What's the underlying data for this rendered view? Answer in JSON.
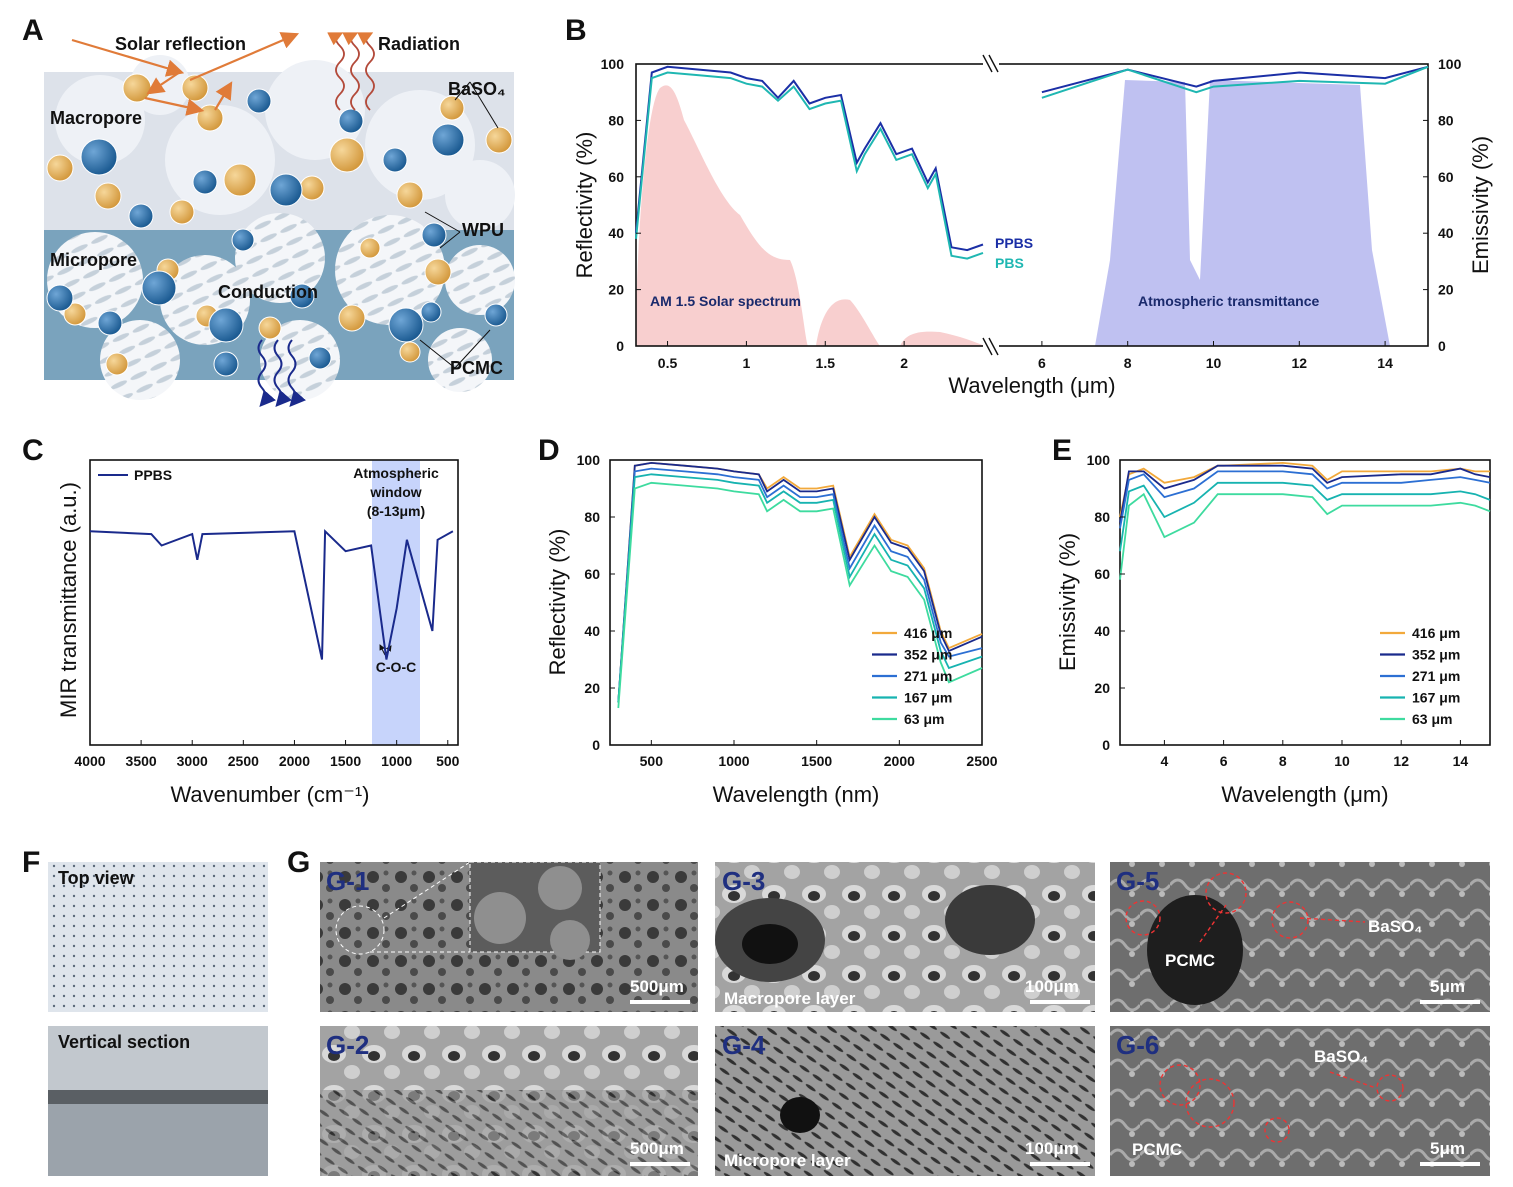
{
  "panels": {
    "a": "A",
    "b": "B",
    "c": "C",
    "d": "D",
    "e": "E",
    "f": "F",
    "g": "G"
  },
  "a": {
    "solar_reflection": "Solar reflection",
    "radiation": "Radiation",
    "macropore": "Macropore",
    "micropore": "Micropore",
    "conduction": "Conduction",
    "baso4": "BaSO₄",
    "wpu": "WPU",
    "pcmc": "PCMC"
  },
  "b": {
    "ylabel_left": "Reflectivity (%)",
    "ylabel_right": "Emissivity (%)",
    "xlabel": "Wavelength (μm)",
    "yticks": [
      "0",
      "20",
      "40",
      "60",
      "80",
      "100"
    ],
    "xticks_left": [
      "0.5",
      "1",
      "1.5",
      "2"
    ],
    "xticks_right": [
      "6",
      "8",
      "10",
      "12",
      "14"
    ],
    "legend": [
      "PPBS",
      "PBS"
    ],
    "solar": "AM 1.5 Solar spectrum",
    "atm": "Atmospheric transmittance"
  },
  "c": {
    "ylabel": "MIR transmittance (a.u.)",
    "xlabel": "Wavenumber (cm⁻¹)",
    "xticks": [
      "4000",
      "3500",
      "3000",
      "2500",
      "2000",
      "1500",
      "1000",
      "500"
    ],
    "legend": "PPBS",
    "window1": "Atmospheric",
    "window2": "window",
    "window3": "(8-13μm)",
    "coc": "C-O-C"
  },
  "d": {
    "ylabel": "Reflectivity (%)",
    "xlabel": "Wavelength (nm)",
    "yticks": [
      "0",
      "20",
      "40",
      "60",
      "80",
      "100"
    ],
    "xticks": [
      "500",
      "1000",
      "1500",
      "2000",
      "2500"
    ],
    "legend": [
      "416 μm",
      "352 μm",
      "271 μm",
      "167 μm",
      "63 μm"
    ]
  },
  "e": {
    "ylabel": "Emissivity (%)",
    "xlabel": "Wavelength (μm)",
    "yticks": [
      "0",
      "20",
      "40",
      "60",
      "80",
      "100"
    ],
    "xticks": [
      "4",
      "6",
      "8",
      "10",
      "12",
      "14"
    ],
    "legend": [
      "416 μm",
      "352 μm",
      "271 μm",
      "167 μm",
      "63 μm"
    ]
  },
  "f": {
    "top": "Top view",
    "vertical": "Vertical section"
  },
  "g": {
    "g1": "G-1",
    "g2": "G-2",
    "g3": "G-3",
    "g4": "G-4",
    "g5": "G-5",
    "g6": "G-6",
    "s500a": "500μm",
    "s500b": "500μm",
    "s100a": "100μm",
    "s100b": "100μm",
    "s5a": "5μm",
    "s5b": "5μm",
    "macro": "Macropore layer",
    "micro": "Micropore layer",
    "pcmc5": "PCMC",
    "baso5": "BaSO₄",
    "pcmc6": "PCMC",
    "baso6": "BaSO₄"
  },
  "chart_data": [
    {
      "type": "line",
      "panel": "B",
      "ylabel": "Reflectivity (%)",
      "y2label": "Emissivity (%)",
      "xlabel": "Wavelength (μm)",
      "ylim": [
        0,
        100
      ],
      "series": [
        {
          "name": "PPBS",
          "color": "#1b2fa6",
          "x": [
            0.3,
            0.4,
            0.5,
            0.7,
            0.9,
            1.0,
            1.1,
            1.2,
            1.3,
            1.4,
            1.5,
            1.6,
            1.7,
            1.75,
            1.85,
            1.95,
            2.05,
            2.15,
            2.2,
            2.3,
            2.4,
            2.5,
            6,
            8,
            9.6,
            10,
            12,
            14,
            15
          ],
          "values": [
            40,
            97,
            99,
            98,
            97,
            95,
            94,
            88,
            94,
            86,
            88,
            89,
            65,
            70,
            79,
            68,
            70,
            58,
            63,
            35,
            34,
            36,
            90,
            98,
            92,
            94,
            97,
            95,
            99
          ]
        },
        {
          "name": "PBS",
          "color": "#1fb7b2",
          "x": [
            0.3,
            0.4,
            0.5,
            0.7,
            0.9,
            1.0,
            1.1,
            1.2,
            1.3,
            1.4,
            1.5,
            1.6,
            1.7,
            1.75,
            1.85,
            1.95,
            2.05,
            2.15,
            2.2,
            2.3,
            2.4,
            2.5,
            6,
            8,
            9.6,
            10,
            12,
            14,
            15
          ],
          "values": [
            38,
            95,
            97,
            96,
            95,
            93,
            92,
            87,
            92,
            84,
            86,
            87,
            62,
            68,
            77,
            66,
            68,
            56,
            61,
            32,
            31,
            33,
            88,
            98,
            90,
            92,
            94,
            93,
            99
          ]
        }
      ]
    },
    {
      "type": "line",
      "panel": "C",
      "ylabel": "MIR transmittance (a.u.)",
      "xlabel": "Wavenumber (cm⁻¹)",
      "xlim": [
        4000,
        400
      ],
      "series": [
        {
          "name": "PPBS",
          "x": [
            4000,
            3400,
            3300,
            3000,
            2950,
            2900,
            2000,
            1730,
            1700,
            1500,
            1250,
            1100,
            1000,
            900,
            650,
            600,
            450
          ],
          "values": [
            75,
            74,
            70,
            74,
            65,
            74,
            75,
            30,
            75,
            68,
            70,
            30,
            48,
            72,
            40,
            72,
            75
          ]
        }
      ]
    },
    {
      "type": "line",
      "panel": "D",
      "ylabel": "Reflectivity (%)",
      "xlabel": "Wavelength (nm)",
      "ylim": [
        0,
        100
      ],
      "x": [
        300,
        400,
        500,
        700,
        900,
        1000,
        1150,
        1200,
        1300,
        1400,
        1500,
        1600,
        1700,
        1850,
        1950,
        2050,
        2150,
        2250,
        2300,
        2500
      ],
      "series": [
        {
          "name": "416 μm",
          "color": "#f2a93b",
          "values": [
            15,
            98,
            99,
            98,
            97,
            96,
            95,
            90,
            94,
            90,
            90,
            91,
            66,
            81,
            72,
            70,
            62,
            40,
            34,
            39
          ]
        },
        {
          "name": "352 μm",
          "color": "#1a2a8c",
          "values": [
            15,
            98,
            99,
            98,
            97,
            96,
            95,
            89,
            93,
            89,
            89,
            90,
            65,
            80,
            71,
            69,
            61,
            39,
            33,
            38
          ]
        },
        {
          "name": "271 μm",
          "color": "#2c6fd3",
          "values": [
            15,
            96,
            97,
            96,
            95,
            94,
            93,
            87,
            91,
            87,
            87,
            88,
            62,
            77,
            68,
            66,
            58,
            36,
            31,
            34
          ]
        },
        {
          "name": "167 μm",
          "color": "#17b3b0",
          "values": [
            15,
            94,
            95,
            94,
            93,
            92,
            91,
            85,
            89,
            85,
            85,
            86,
            59,
            74,
            65,
            63,
            55,
            33,
            27,
            31
          ]
        },
        {
          "name": "63 μm",
          "color": "#3edb9f",
          "values": [
            13,
            90,
            92,
            91,
            90,
            89,
            88,
            82,
            86,
            82,
            82,
            83,
            56,
            70,
            61,
            59,
            51,
            29,
            22,
            27
          ]
        }
      ]
    },
    {
      "type": "line",
      "panel": "E",
      "ylabel": "Emissivity (%)",
      "xlabel": "Wavelength (μm)",
      "ylim": [
        0,
        100
      ],
      "x": [
        2.5,
        2.8,
        3.3,
        4,
        5,
        5.8,
        6,
        8,
        9,
        9.5,
        10,
        12,
        13,
        14,
        14.5,
        15
      ],
      "series": [
        {
          "name": "416 μm",
          "color": "#f2a93b",
          "values": [
            80,
            95,
            97,
            92,
            94,
            98,
            98,
            99,
            98,
            93,
            96,
            96,
            96,
            97,
            96,
            96
          ]
        },
        {
          "name": "352 μm",
          "color": "#1a2a8c",
          "values": [
            78,
            96,
            96,
            90,
            93,
            98,
            98,
            98,
            97,
            92,
            94,
            95,
            95,
            97,
            95,
            94
          ]
        },
        {
          "name": "271 μm",
          "color": "#2c6fd3",
          "values": [
            76,
            93,
            95,
            87,
            90,
            96,
            96,
            96,
            95,
            90,
            92,
            92,
            93,
            94,
            93,
            92
          ]
        },
        {
          "name": "167 μm",
          "color": "#17b3b0",
          "values": [
            68,
            89,
            91,
            80,
            85,
            92,
            92,
            92,
            91,
            86,
            88,
            88,
            88,
            89,
            88,
            86
          ]
        },
        {
          "name": "63 μm",
          "color": "#3edb9f",
          "values": [
            58,
            84,
            88,
            73,
            78,
            88,
            88,
            88,
            87,
            81,
            84,
            84,
            84,
            85,
            84,
            82
          ]
        }
      ]
    }
  ]
}
